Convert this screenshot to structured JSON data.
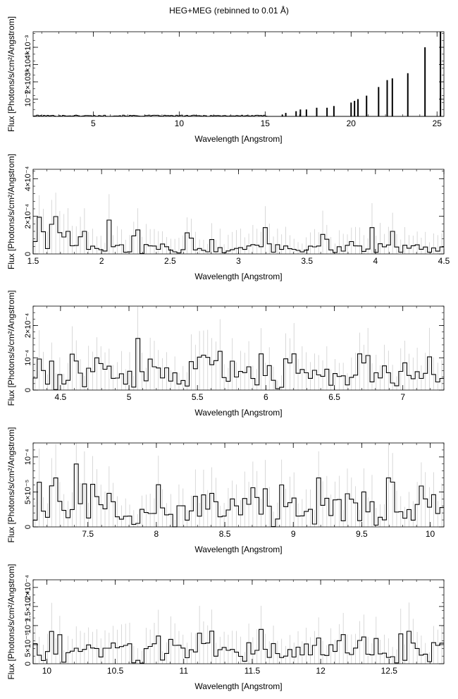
{
  "figure": {
    "title": "HEG+MEG (rebinned to 0.01 Å)"
  },
  "chart_data": [
    {
      "type": "histogram",
      "xlabel": "Wavelength [Angstrom]",
      "ylabel": "Flux [Photons/s/cm²/Angstrom]",
      "xlim": [
        1.5,
        25.4
      ],
      "ylim": [
        0,
        0.0049
      ],
      "xticks": [
        5,
        10,
        15,
        20,
        25
      ],
      "xtick_labels": [
        "5",
        "10",
        "15",
        "20",
        "25"
      ],
      "yticks": [
        0.001,
        0.002,
        0.003,
        0.004
      ],
      "ytick_labels": [
        "10⁻³",
        "2×10⁻³",
        "3×10⁻³",
        "4×10⁻³"
      ],
      "lines": [
        [
          16.0,
          0.0001
        ],
        [
          16.2,
          0.0002
        ],
        [
          16.8,
          0.0003
        ],
        [
          17.05,
          0.0004
        ],
        [
          17.4,
          0.0004
        ],
        [
          18.0,
          0.0005
        ],
        [
          18.6,
          0.0005
        ],
        [
          19.0,
          0.0006
        ],
        [
          20.0,
          0.0008
        ],
        [
          20.2,
          0.0009
        ],
        [
          20.4,
          0.001
        ],
        [
          20.9,
          0.0012
        ],
        [
          21.6,
          0.0017
        ],
        [
          22.1,
          0.0021
        ],
        [
          22.4,
          0.0022
        ],
        [
          23.3,
          0.0025
        ],
        [
          24.3,
          0.004
        ],
        [
          25.2,
          0.0049
        ]
      ]
    },
    {
      "type": "histogram",
      "xlabel": "Wavelength [Angstrom]",
      "ylabel": "Flux [Photons/s/cm²/Angstrom]",
      "xlim": [
        1.5,
        4.5
      ],
      "ylim": [
        0,
        0.00045
      ],
      "xticks": [
        1.5,
        2,
        2.5,
        3,
        3.5,
        4,
        4.5
      ],
      "xtick_labels": [
        "1.5",
        "2",
        "2.5",
        "3",
        "3.5",
        "4",
        "4.5"
      ],
      "yticks": [
        0,
        0.0002,
        0.0004
      ],
      "ytick_labels": [
        "0",
        "2×10⁻⁴",
        "4×10⁻⁴"
      ],
      "peaks": [
        [
          1.73,
          0.00015
        ],
        [
          1.85,
          0.00015
        ],
        [
          2.04,
          0.00018
        ],
        [
          2.24,
          0.00016
        ],
        [
          2.62,
          0.00014
        ],
        [
          3.18,
          0.00014
        ],
        [
          3.61,
          0.00013
        ],
        [
          3.96,
          0.00014
        ],
        [
          4.11,
          0.00012
        ]
      ]
    },
    {
      "type": "histogram",
      "xlabel": "Wavelength [Angstrom]",
      "ylabel": "Flux [Photons/s/cm²/Angstrom]",
      "xlim": [
        4.3,
        7.3
      ],
      "ylim": [
        0,
        0.00026
      ],
      "xticks": [
        4.5,
        5,
        5.5,
        6,
        6.5,
        7
      ],
      "xtick_labels": [
        "4.5",
        "5",
        "5.5",
        "6",
        "6.5",
        "7"
      ],
      "yticks": [
        0,
        0.0001,
        0.0002
      ],
      "ytick_labels": [
        "0",
        "10⁻⁴",
        "2×10⁻⁴"
      ],
      "peaks": [
        [
          4.6,
          9e-05
        ],
        [
          5.05,
          0.00016
        ],
        [
          5.15,
          0.00012
        ],
        [
          5.45,
          0.00011
        ],
        [
          5.65,
          0.00012
        ],
        [
          5.85,
          9e-05
        ],
        [
          6.18,
          0.00014
        ],
        [
          6.68,
          0.00014
        ],
        [
          6.72,
          0.00012
        ],
        [
          7.1,
          6e-05
        ]
      ]
    },
    {
      "type": "histogram",
      "xlabel": "Wavelength [Angstrom]",
      "ylabel": "Flux [Photons/s/cm²/Angstrom]",
      "xlim": [
        7.1,
        10.1
      ],
      "ylim": [
        0,
        0.00012
      ],
      "xticks": [
        7.5,
        8,
        8.5,
        9,
        9.5,
        10
      ],
      "xtick_labels": [
        "7.5",
        "8",
        "8.5",
        "9",
        "9.5",
        "10"
      ],
      "yticks": [
        0,
        5e-05,
        0.0001
      ],
      "ytick_labels": [
        "0",
        "5×10⁻⁵",
        "10⁻⁴"
      ],
      "peaks": [
        [
          7.25,
          7e-05
        ],
        [
          7.4,
          9e-05
        ],
        [
          7.65,
          6e-05
        ],
        [
          8.4,
          6e-05
        ],
        [
          8.55,
          5e-05
        ],
        [
          8.7,
          7e-05
        ],
        [
          8.9,
          6e-05
        ],
        [
          9.17,
          7e-05
        ],
        [
          9.5,
          5e-05
        ],
        [
          9.68,
          7e-05
        ],
        [
          9.95,
          4e-05
        ]
      ]
    },
    {
      "type": "histogram",
      "xlabel": "Wavelength [Angstrom]",
      "ylabel": "Flux [Photons/s/cm²/Angstrom]",
      "xlim": [
        9.9,
        12.9
      ],
      "ylim": [
        0,
        0.00022
      ],
      "xticks": [
        10,
        10.5,
        11,
        11.5,
        12,
        12.5
      ],
      "xtick_labels": [
        "10",
        "10.5",
        "11",
        "11.5",
        "12",
        "12.5"
      ],
      "yticks": [
        0,
        5e-05,
        0.0001,
        0.00015,
        0.0002
      ],
      "ytick_labels": [
        "0",
        "5×10⁻⁵",
        "10⁻⁴",
        "1.5×10⁻⁴",
        "2×10⁻⁴"
      ],
      "peaks": [
        [
          10.0,
          4e-05
        ],
        [
          10.55,
          6e-05
        ],
        [
          10.9,
          8e-05
        ],
        [
          11.1,
          8e-05
        ],
        [
          11.55,
          9e-05
        ],
        [
          11.95,
          6e-05
        ],
        [
          12.15,
          7e-05
        ],
        [
          12.3,
          7e-05
        ],
        [
          12.85,
          6e-05
        ]
      ]
    }
  ]
}
